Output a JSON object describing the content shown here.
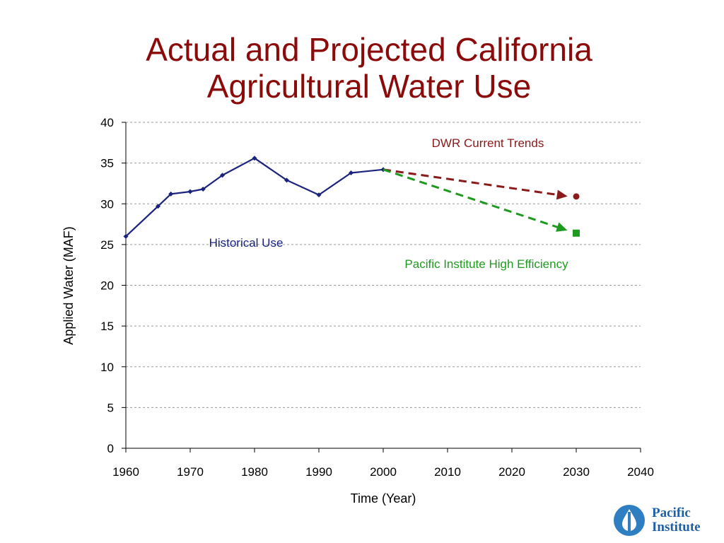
{
  "title_line1": "Actual and Projected California",
  "title_line2": "Agricultural Water Use",
  "logo": {
    "line1": "Pacific",
    "line2": "Institute"
  },
  "chart_data": {
    "type": "line",
    "xlabel": "Time (Year)",
    "ylabel": "Applied Water (MAF)",
    "xlim": [
      1960,
      2040
    ],
    "ylim": [
      0,
      40
    ],
    "xticks": [
      1960,
      1970,
      1980,
      1990,
      2000,
      2010,
      2020,
      2030,
      2040
    ],
    "yticks": [
      0,
      5,
      10,
      15,
      20,
      25,
      30,
      35,
      40
    ],
    "grid": "horizontal dashed",
    "series": [
      {
        "name": "Historical Use",
        "color": "#1a237e",
        "style": "solid",
        "marker": "diamond",
        "points": [
          [
            1960,
            26.0
          ],
          [
            1965,
            29.7
          ],
          [
            1967,
            31.2
          ],
          [
            1970,
            31.5
          ],
          [
            1972,
            31.8
          ],
          [
            1975,
            33.5
          ],
          [
            1980,
            35.6
          ],
          [
            1985,
            32.9
          ],
          [
            1990,
            31.1
          ],
          [
            1995,
            33.8
          ],
          [
            2000,
            34.2
          ]
        ]
      },
      {
        "name": "DWR Current Trends",
        "color": "#8b1a1a",
        "style": "dashed",
        "marker": "circle",
        "points": [
          [
            2000,
            34.2
          ],
          [
            2028,
            31.0
          ]
        ],
        "endpoint": [
          2030,
          30.9
        ]
      },
      {
        "name": "Pacific Institute High Efficiency",
        "color": "#1e9a1e",
        "style": "dashed",
        "marker": "square",
        "points": [
          [
            2000,
            34.2
          ],
          [
            2028,
            26.9
          ]
        ],
        "endpoint": [
          2030,
          26.4
        ]
      }
    ],
    "annotations": [
      {
        "text": "DWR Current Trends",
        "color": "#8b1a1a"
      },
      {
        "text": "Historical Use",
        "color": "#1a237e"
      },
      {
        "text": "Pacific Institute High Efficiency",
        "color": "#1e9a1e"
      }
    ]
  }
}
